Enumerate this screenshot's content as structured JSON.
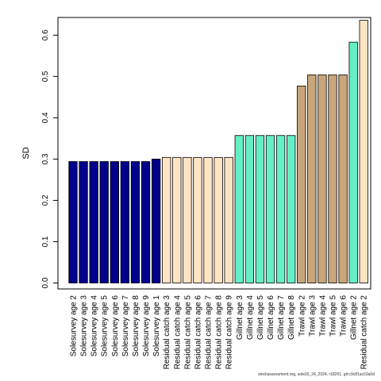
{
  "chart_data": {
    "type": "bar",
    "ylabel": "SD",
    "xlabel": "",
    "ylim": [
      0,
      0.64
    ],
    "yticks": [
      0.0,
      0.1,
      0.2,
      0.3,
      0.4,
      0.5,
      0.6
    ],
    "ytick_labels": [
      "0.0",
      "0.1",
      "0.2",
      "0.3",
      "0.4",
      "0.5",
      "0.6"
    ],
    "grid": false,
    "categories": [
      "Solesurvey age 2",
      "Solesurvey age 3",
      "Solesurvey age 4",
      "Solesurvey age 5",
      "Solesurvey age 6",
      "Solesurvey age 7",
      "Solesurvey age 8",
      "Solesurvey age 9",
      "Solesurvey age 1",
      "Residual catch age 3",
      "Residual catch age 4",
      "Residual catch age 5",
      "Residual catch age 6",
      "Residual catch age 7",
      "Residual catch age 8",
      "Residual catch age 9",
      "Gillnet age 3",
      "Gillnet age 4",
      "Gillnet age 5",
      "Gillnet age 6",
      "Gillnet age 7",
      "Gillnet age 8",
      "Trawl age 2",
      "Trawl age 3",
      "Trawl age 4",
      "Trawl age 5",
      "Trawl age 6",
      "Gillnet age 2",
      "Residual catch age 2"
    ],
    "values": [
      0.294,
      0.294,
      0.294,
      0.294,
      0.294,
      0.294,
      0.294,
      0.294,
      0.3,
      0.304,
      0.304,
      0.304,
      0.304,
      0.304,
      0.304,
      0.304,
      0.357,
      0.357,
      0.357,
      0.357,
      0.357,
      0.357,
      0.477,
      0.504,
      0.504,
      0.504,
      0.504,
      0.583,
      0.636
    ],
    "colors": [
      "#00008B",
      "#00008B",
      "#00008B",
      "#00008B",
      "#00008B",
      "#00008B",
      "#00008B",
      "#00008B",
      "#00008B",
      "#FFE4C4",
      "#FFE4C4",
      "#FFE4C4",
      "#FFE4C4",
      "#FFE4C4",
      "#FFE4C4",
      "#FFE4C4",
      "#66EEC4",
      "#66EEC4",
      "#66EEC4",
      "#66EEC4",
      "#66EEC4",
      "#66EEC4",
      "#C8A57A",
      "#C8A57A",
      "#C8A57A",
      "#C8A57A",
      "#C8A57A",
      "#66EEC4",
      "#FFE4C4"
    ]
  },
  "footer": {
    "text": "stockassessment.org, sole20_24_2024, r18261, git:c9c81ac53a0d"
  }
}
